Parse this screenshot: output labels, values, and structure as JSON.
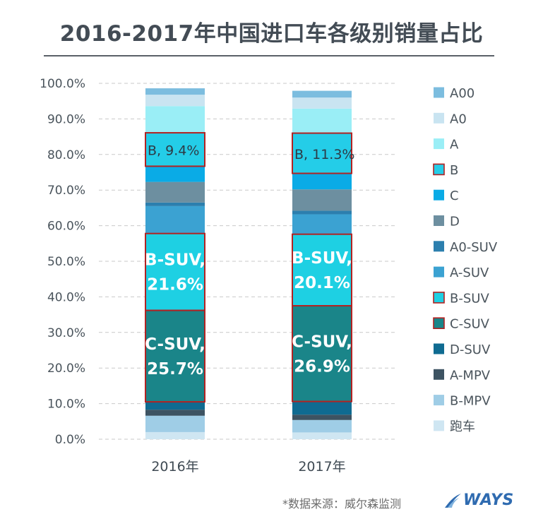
{
  "chart_data": {
    "type": "bar",
    "stacked": true,
    "title": "2016-2017年中国进口车各级别销量占比",
    "xlabel": "",
    "ylabel": "",
    "ylim": [
      0,
      100
    ],
    "categories": [
      "2016年",
      "2017年"
    ],
    "y_ticks": [
      "0.0%",
      "10.0%",
      "20.0%",
      "30.0%",
      "40.0%",
      "50.0%",
      "60.0%",
      "70.0%",
      "80.0%",
      "90.0%",
      "100.0%"
    ],
    "grid": true,
    "legend_position": "right",
    "series": [
      {
        "name": "跑车",
        "color": "#cfe6f2",
        "values": [
          2.0,
          1.9
        ],
        "highlight": false
      },
      {
        "name": "B-MPV",
        "color": "#9fcde6",
        "values": [
          4.6,
          3.5
        ],
        "highlight": false
      },
      {
        "name": "A-MPV",
        "color": "#3d5362",
        "values": [
          1.7,
          1.5
        ],
        "highlight": false
      },
      {
        "name": "D-SUV",
        "color": "#0f6b91",
        "values": [
          2.2,
          3.7
        ],
        "highlight": false
      },
      {
        "name": "C-SUV",
        "color": "#1a8589",
        "values": [
          25.7,
          26.9
        ],
        "highlight": true
      },
      {
        "name": "B-SUV",
        "color": "#1ed0e3",
        "values": [
          21.6,
          20.1
        ],
        "highlight": true
      },
      {
        "name": "A-SUV",
        "color": "#3ba2d2",
        "values": [
          7.7,
          5.6
        ],
        "highlight": false
      },
      {
        "name": "A0-SUV",
        "color": "#2c7fae",
        "values": [
          1.0,
          1.0
        ],
        "highlight": false
      },
      {
        "name": "D",
        "color": "#6d8fa0",
        "values": [
          5.8,
          6.0
        ],
        "highlight": false
      },
      {
        "name": "C",
        "color": "#0aabe6",
        "values": [
          4.4,
          4.5
        ],
        "highlight": false
      },
      {
        "name": "B",
        "color": "#24cde8",
        "values": [
          9.4,
          11.3
        ],
        "highlight": true
      },
      {
        "name": "A",
        "color": "#9aeef6",
        "values": [
          7.5,
          6.9
        ],
        "highlight": false
      },
      {
        "name": "A0",
        "color": "#c9e4f1",
        "values": [
          3.2,
          3.1
        ],
        "highlight": false
      },
      {
        "name": "A00",
        "color": "#7cbddf",
        "values": [
          1.8,
          1.9
        ],
        "highlight": false
      }
    ],
    "annotations": [
      {
        "series": "C-SUV",
        "category": "2016年",
        "lines": [
          "C-SUV,",
          "25.7%"
        ]
      },
      {
        "series": "B-SUV",
        "category": "2016年",
        "lines": [
          "B-SUV,",
          "21.6%"
        ]
      },
      {
        "series": "B",
        "category": "2016年",
        "lines": [
          "B, 9.4%"
        ]
      },
      {
        "series": "C-SUV",
        "category": "2017年",
        "lines": [
          "C-SUV,",
          "26.9%"
        ]
      },
      {
        "series": "B-SUV",
        "category": "2017年",
        "lines": [
          "B-SUV,",
          "20.1%"
        ]
      },
      {
        "series": "B",
        "category": "2017年",
        "lines": [
          "B, 11.3%"
        ]
      }
    ],
    "legend_order": [
      "A00",
      "A0",
      "A",
      "B",
      "C",
      "D",
      "A0-SUV",
      "A-SUV",
      "B-SUV",
      "C-SUV",
      "D-SUV",
      "A-MPV",
      "B-MPV",
      "跑车"
    ],
    "highlight_border_color": "#b22222"
  },
  "footer": {
    "source": "*数据来源：威尔森监测",
    "brand": "WAYS"
  }
}
